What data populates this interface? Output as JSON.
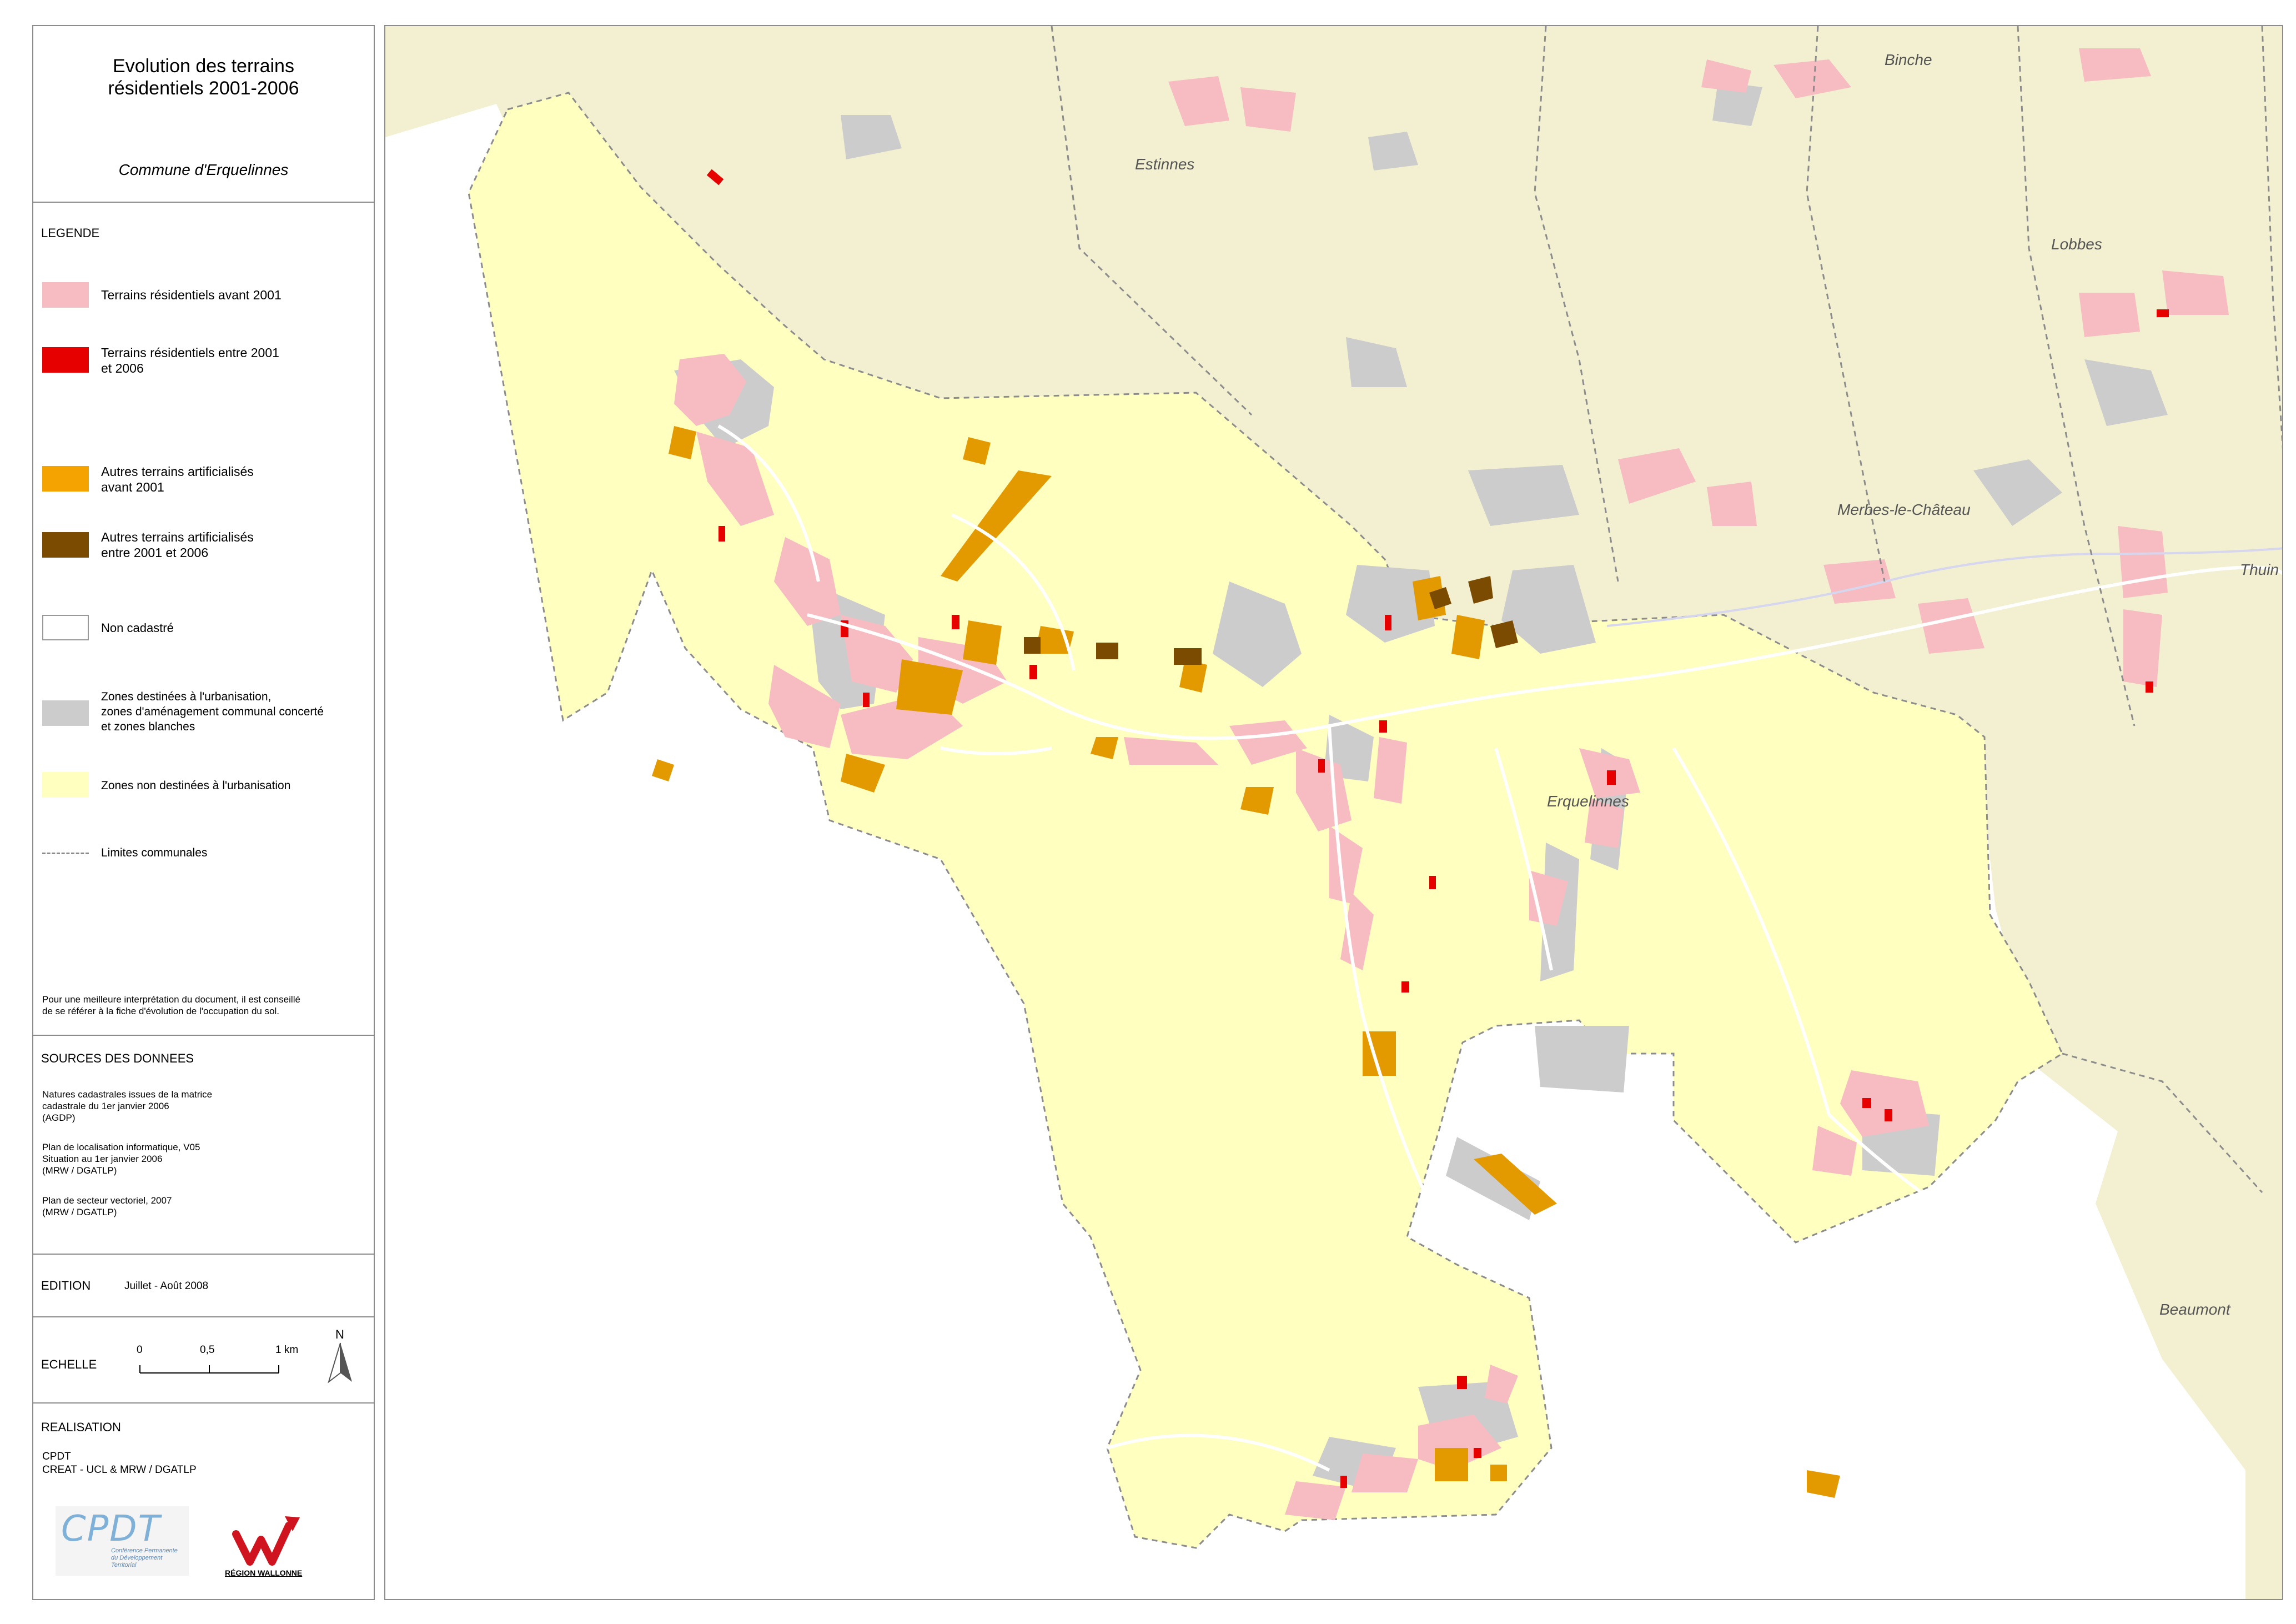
{
  "legend_panel": {
    "title_line1": "Evolution des terrains",
    "title_line2": "résidentiels 2001-2006",
    "commune": "Commune d'Erquelinnes",
    "legend_header": "LEGENDE",
    "items": [
      {
        "label_line1": "Terrains résidentiels avant 2001",
        "label_line2": "",
        "color": "#f7bcc2"
      },
      {
        "label_line1": "Terrains résidentiels entre 2001",
        "label_line2": "et 2006",
        "color": "#e60000"
      },
      {
        "label_line1": "Autres terrains artificialisés",
        "label_line2": "avant 2001",
        "color": "#f5a300"
      },
      {
        "label_line1": "Autres terrains artificialisés",
        "label_line2": "entre 2001 et 2006",
        "color": "#7a4b00"
      },
      {
        "label_line1": "Non cadastré",
        "label_line2": "",
        "color": "#ffffff"
      },
      {
        "label_line1": "Zones destinées à l'urbanisation,",
        "label_line2": "zones d'aménagement communal concerté",
        "label_line3": "et zones blanches",
        "color": "#cccccc"
      },
      {
        "label_line1": "Zones non destinées à l'urbanisation",
        "label_line2": "",
        "color": "#ffffc0"
      },
      {
        "label_line1": "Limites communales",
        "label_line2": ""
      }
    ],
    "note_line1": "Pour une meilleure interprétation du document, il est conseillé",
    "note_line2": "de se référer à la fiche d'évolution de l'occupation du sol."
  },
  "sources": {
    "header": "SOURCES DES DONNEES",
    "s1_l1": "Natures cadastrales issues de la matrice",
    "s1_l2": "cadastrale du 1er janvier 2006",
    "s1_l3": "(AGDP)",
    "s2_l1": "Plan de localisation informatique, V05",
    "s2_l2": "Situation au 1er janvier 2006",
    "s2_l3": "(MRW / DGATLP)",
    "s3_l1": "Plan de secteur vectoriel, 2007",
    "s3_l2": "(MRW / DGATLP)"
  },
  "edition": {
    "label": "EDITION",
    "value": "Juillet - Août 2008"
  },
  "scale": {
    "label": "ECHELLE",
    "t0": "0",
    "t1": "0,5",
    "t2": "1 km",
    "north": "N"
  },
  "realisation": {
    "header": "REALISATION",
    "l1": "CPDT",
    "l2": "CREAT - UCL & MRW / DGATLP",
    "cpdt_logo_text": "CPDT",
    "cpdt_sub1": "Conférence Permanente",
    "cpdt_sub2": "du Développement",
    "cpdt_sub3": "Territorial",
    "rw_logo_text": "RÉGION WALLONNE"
  },
  "map": {
    "places": [
      "Binche",
      "Estinnes",
      "Lobbes",
      "Merbes-le-Château",
      "Thuin",
      "Erquelinnes",
      "Beaumont"
    ],
    "colors": {
      "outside": "#f2f0d0",
      "non_urban": "#ffffc0",
      "urban_zone": "#cccccc",
      "resid_old": "#f7bcc2",
      "resid_new": "#e60000",
      "artif_old": "#e39a00",
      "artif_new": "#7a4b00",
      "boundary": "#8c8c8c"
    }
  }
}
